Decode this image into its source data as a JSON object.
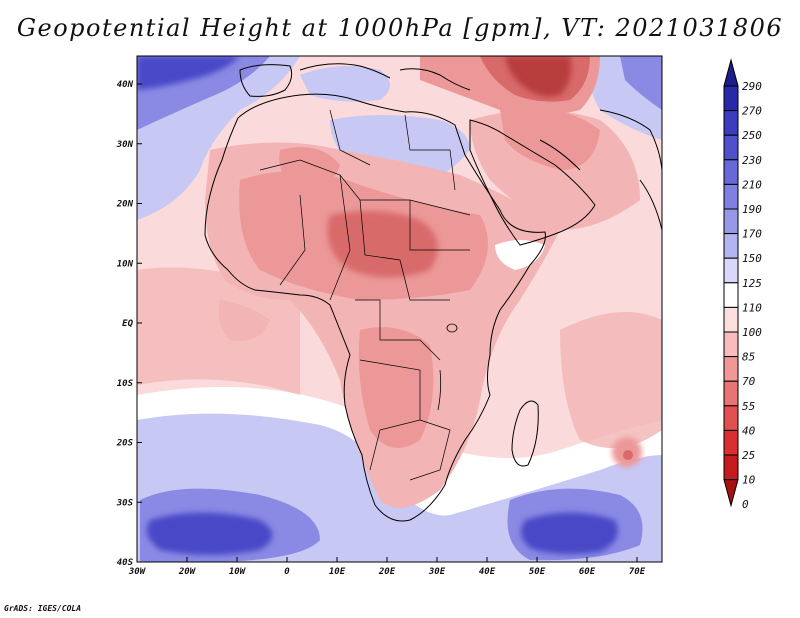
{
  "title": "Geopotential Height at 1000hPa [gpm], VT: 2021031806",
  "credit": "GrADS: IGES/COLA",
  "map": {
    "lat_labels": [
      "40N",
      "30N",
      "20N",
      "10N",
      "EQ",
      "10S",
      "20S",
      "30S",
      "40S"
    ],
    "lon_labels": [
      "30W",
      "20W",
      "10W",
      "0",
      "10E",
      "20E",
      "30E",
      "40E",
      "50E",
      "60E",
      "70E"
    ]
  },
  "colorbar": {
    "levels": [
      "290",
      "270",
      "250",
      "230",
      "210",
      "190",
      "170",
      "150",
      "125",
      "110",
      "100",
      "85",
      "70",
      "55",
      "40",
      "25",
      "10",
      "0"
    ],
    "colors": [
      "#1c1c8c",
      "#2828a8",
      "#3c3cc0",
      "#5050cc",
      "#6868d8",
      "#8080e0",
      "#9898e8",
      "#b4b4f0",
      "#d8d8f8",
      "#ffffff",
      "#fcdede",
      "#f8bcbc",
      "#f09898",
      "#e87474",
      "#e05050",
      "#d83030",
      "#c41c1c",
      "#a81010"
    ]
  },
  "field_colors": {
    "blue_deep": "#4a4ac8",
    "blue_mid": "#8a8ae4",
    "blue_light": "#c8c8f4",
    "white": "#ffffff",
    "pink_pale": "#fadada",
    "pink": "#f2b4b4",
    "red_light": "#ec9898",
    "red_mid": "#d86a6a",
    "red_dark": "#b83c3c"
  }
}
